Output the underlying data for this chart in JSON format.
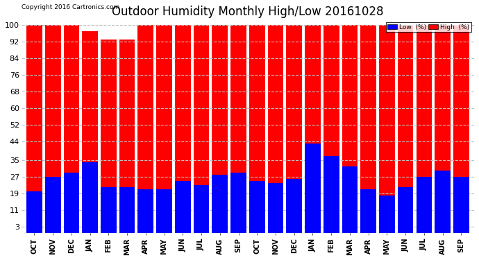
{
  "title": "Outdoor Humidity Monthly High/Low 20161028",
  "copyright": "Copyright 2016 Cartronics.com",
  "categories": [
    "OCT",
    "NOV",
    "DEC",
    "JAN",
    "FEB",
    "MAR",
    "APR",
    "MAY",
    "JUN",
    "JUL",
    "AUG",
    "SEP",
    "OCT",
    "NOV",
    "DEC",
    "JAN",
    "FEB",
    "MAR",
    "APR",
    "MAY",
    "JUN",
    "JUL",
    "AUG",
    "SEP"
  ],
  "high_values": [
    100,
    100,
    100,
    97,
    93,
    93,
    100,
    100,
    100,
    100,
    100,
    100,
    100,
    100,
    100,
    100,
    100,
    100,
    100,
    100,
    100,
    100,
    100,
    100
  ],
  "low_values": [
    20,
    27,
    29,
    34,
    22,
    22,
    21,
    21,
    25,
    23,
    28,
    29,
    25,
    24,
    26,
    43,
    37,
    32,
    21,
    18,
    22,
    27,
    30,
    27
  ],
  "high_color": "#ff0000",
  "low_color": "#0000ff",
  "bg_color": "#ffffff",
  "plot_bg_color": "#ffffff",
  "ylabel_color": "#000000",
  "yticks": [
    3,
    11,
    19,
    27,
    35,
    44,
    52,
    60,
    68,
    76,
    84,
    92,
    100
  ],
  "ylim": [
    0,
    103
  ],
  "ymin": 0,
  "grid_color": "#c0c0c0",
  "title_fontsize": 12,
  "bar_width": 0.85,
  "legend_low_label": "Low  (%)",
  "legend_high_label": "High  (%)"
}
